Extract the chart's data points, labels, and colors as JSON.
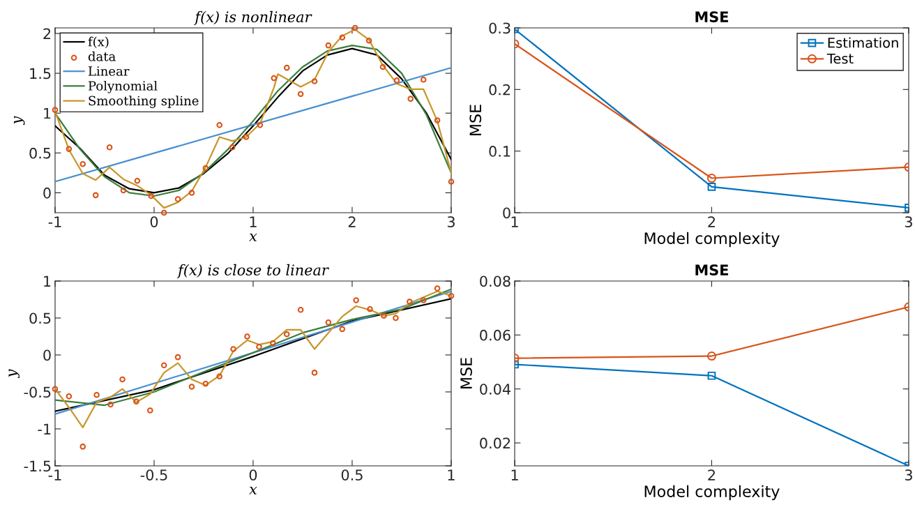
{
  "chart_data": [
    {
      "type": "line",
      "title": "f(x) is nonlinear",
      "xlabel": "x",
      "ylabel": "y",
      "xlim": [
        -1,
        3
      ],
      "ylim": [
        -0.25,
        2.07
      ],
      "xticks": [
        -1,
        0,
        1,
        2,
        3
      ],
      "yticks": [
        0,
        0.5,
        1,
        1.5,
        2
      ],
      "grid": false,
      "legend": "top left",
      "series": [
        {
          "name": "f(x)",
          "type": "line",
          "color": "#000000",
          "x": [
            -1,
            -0.75,
            -0.5,
            -0.25,
            0,
            0.25,
            0.5,
            0.75,
            1,
            1.25,
            1.5,
            1.75,
            2,
            2.25,
            2.5,
            2.75,
            3
          ],
          "values": [
            0.84,
            0.56,
            0.22,
            0.05,
            0.0,
            0.06,
            0.24,
            0.5,
            0.84,
            1.2,
            1.53,
            1.73,
            1.81,
            1.73,
            1.43,
            1.0,
            0.42
          ]
        },
        {
          "name": "data",
          "type": "scatter",
          "marker": "circle",
          "color": "#d95319",
          "x": [
            -1,
            -0.86,
            -0.72,
            -0.59,
            -0.45,
            -0.31,
            -0.17,
            -0.03,
            0.1,
            0.24,
            0.38,
            0.52,
            0.66,
            0.79,
            0.93,
            1.07,
            1.21,
            1.34,
            1.48,
            1.62,
            1.76,
            1.9,
            2.03,
            2.17,
            2.31,
            2.45,
            2.59,
            2.72,
            2.86,
            3.0
          ],
          "values": [
            1.04,
            0.55,
            0.36,
            -0.03,
            0.57,
            0.03,
            0.15,
            -0.04,
            -0.25,
            -0.08,
            0.0,
            0.31,
            0.85,
            0.57,
            0.7,
            0.85,
            1.44,
            1.57,
            1.24,
            1.4,
            1.85,
            1.95,
            2.07,
            1.91,
            1.58,
            1.41,
            1.18,
            1.42,
            0.91,
            0.14
          ]
        },
        {
          "name": "Linear",
          "type": "line",
          "color": "#4a90d0",
          "x": [
            -1,
            3
          ],
          "values": [
            0.14,
            1.57
          ]
        },
        {
          "name": "Polynomial",
          "type": "line",
          "color": "#3a7d3a",
          "x": [
            -1,
            -0.75,
            -0.5,
            -0.25,
            0,
            0.25,
            0.5,
            0.75,
            1,
            1.25,
            1.5,
            1.75,
            2,
            2.25,
            2.5,
            2.75,
            3
          ],
          "values": [
            1.0,
            0.55,
            0.2,
            0.0,
            -0.04,
            0.03,
            0.25,
            0.55,
            0.9,
            1.28,
            1.58,
            1.78,
            1.85,
            1.8,
            1.5,
            0.98,
            0.25
          ]
        },
        {
          "name": "Smoothing spline",
          "type": "line",
          "color": "#c8962a",
          "x": [
            -1,
            -0.86,
            -0.72,
            -0.59,
            -0.45,
            -0.31,
            -0.17,
            -0.03,
            0.1,
            0.24,
            0.38,
            0.52,
            0.66,
            0.79,
            0.93,
            1.07,
            1.21,
            1.25,
            1.48,
            1.62,
            1.76,
            1.9,
            2.03,
            2.17,
            2.31,
            2.45,
            2.59,
            2.72,
            2.86,
            3.0
          ],
          "values": [
            1.02,
            0.54,
            0.24,
            0.16,
            0.32,
            0.17,
            0.09,
            -0.03,
            -0.19,
            -0.12,
            0.02,
            0.32,
            0.7,
            0.65,
            0.7,
            0.87,
            1.32,
            1.49,
            1.33,
            1.42,
            1.77,
            1.97,
            2.05,
            1.92,
            1.6,
            1.37,
            1.3,
            1.3,
            0.9,
            0.25
          ]
        }
      ]
    },
    {
      "type": "line",
      "title": "MSE",
      "xlabel": "Model complexity",
      "ylabel": "MSE",
      "xlim": [
        1,
        3
      ],
      "ylim": [
        0,
        0.3
      ],
      "xticks": [
        1,
        2,
        3
      ],
      "yticks": [
        0,
        0.1,
        0.2,
        0.3
      ],
      "grid": false,
      "legend": "top right",
      "series": [
        {
          "name": "Estimation",
          "marker": "square",
          "color": "#0072bd",
          "x": [
            1,
            2,
            3
          ],
          "values": [
            0.298,
            0.042,
            0.008
          ]
        },
        {
          "name": "Test",
          "marker": "circle",
          "color": "#d95319",
          "x": [
            1,
            2,
            3
          ],
          "values": [
            0.274,
            0.056,
            0.074
          ]
        }
      ]
    },
    {
      "type": "line",
      "title": "f(x) is close to linear",
      "xlabel": "x",
      "ylabel": "y",
      "xlim": [
        -1,
        1
      ],
      "ylim": [
        -1.5,
        1
      ],
      "xticks": [
        -1,
        -0.5,
        0,
        0.5,
        1
      ],
      "yticks": [
        -1.5,
        -1,
        -0.5,
        0,
        0.5,
        1
      ],
      "grid": false,
      "legend": false,
      "series": [
        {
          "type": "line",
          "color": "#000000",
          "x": [
            -1,
            -0.5,
            0,
            0.5,
            1
          ],
          "values": [
            -0.76,
            -0.47,
            -0.02,
            0.46,
            0.76
          ]
        },
        {
          "type": "scatter",
          "marker": "circle",
          "color": "#d95319",
          "x": [
            -1,
            -0.93,
            -0.86,
            -0.79,
            -0.72,
            -0.66,
            -0.59,
            -0.52,
            -0.45,
            -0.38,
            -0.31,
            -0.24,
            -0.17,
            -0.1,
            -0.03,
            0.03,
            0.1,
            0.17,
            0.24,
            0.31,
            0.38,
            0.45,
            0.52,
            0.59,
            0.66,
            0.72,
            0.79,
            0.86,
            0.93,
            1.0
          ],
          "values": [
            -0.46,
            -0.56,
            -1.24,
            -0.54,
            -0.67,
            -0.33,
            -0.63,
            -0.75,
            -0.14,
            -0.03,
            -0.43,
            -0.39,
            -0.29,
            0.08,
            0.25,
            0.11,
            0.16,
            0.28,
            0.61,
            -0.24,
            0.44,
            0.35,
            0.74,
            0.62,
            0.53,
            0.5,
            0.72,
            0.74,
            0.9,
            0.8
          ]
        },
        {
          "type": "line",
          "color": "#4a90d0",
          "x": [
            -1,
            1
          ],
          "values": [
            -0.8,
            0.86
          ]
        },
        {
          "type": "line",
          "color": "#3a7d3a",
          "x": [
            -1,
            -0.75,
            -0.5,
            -0.25,
            0,
            0.25,
            0.5,
            0.75,
            1
          ],
          "values": [
            -0.61,
            -0.68,
            -0.5,
            -0.23,
            0.03,
            0.3,
            0.48,
            0.62,
            0.89
          ]
        },
        {
          "type": "line",
          "color": "#c8962a",
          "x": [
            -1,
            -0.93,
            -0.86,
            -0.79,
            -0.72,
            -0.66,
            -0.59,
            -0.52,
            -0.45,
            -0.38,
            -0.31,
            -0.24,
            -0.17,
            -0.1,
            -0.03,
            0.03,
            0.1,
            0.17,
            0.24,
            0.31,
            0.38,
            0.45,
            0.52,
            0.59,
            0.66,
            0.72,
            0.79,
            0.86,
            0.93,
            1.0
          ],
          "values": [
            -0.46,
            -0.71,
            -0.98,
            -0.64,
            -0.57,
            -0.46,
            -0.64,
            -0.53,
            -0.24,
            -0.11,
            -0.33,
            -0.41,
            -0.28,
            0.05,
            0.2,
            0.14,
            0.18,
            0.34,
            0.34,
            0.08,
            0.3,
            0.52,
            0.66,
            0.61,
            0.53,
            0.56,
            0.7,
            0.78,
            0.86,
            0.8
          ]
        }
      ]
    },
    {
      "type": "line",
      "title": "MSE",
      "xlabel": "Model complexity",
      "ylabel": "MSE",
      "xlim": [
        1,
        3
      ],
      "ylim": [
        0.0115,
        0.08
      ],
      "xticks": [
        1,
        2,
        3
      ],
      "yticks": [
        0.02,
        0.04,
        0.06,
        0.08
      ],
      "grid": false,
      "legend": false,
      "series": [
        {
          "marker": "square",
          "color": "#0072bd",
          "x": [
            1,
            2,
            3
          ],
          "values": [
            0.0491,
            0.0449,
            0.0115
          ]
        },
        {
          "marker": "circle",
          "color": "#d95319",
          "x": [
            1,
            2,
            3
          ],
          "values": [
            0.0514,
            0.0522,
            0.0704
          ]
        }
      ]
    }
  ]
}
